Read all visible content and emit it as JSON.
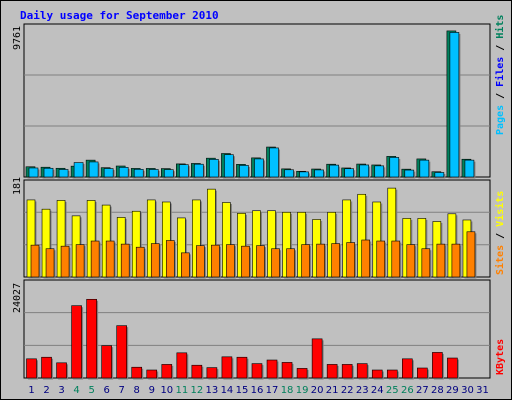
{
  "chart_data": {
    "type": "bar",
    "title": "Daily usage for September 2010",
    "categories": [
      "1",
      "2",
      "3",
      "4",
      "5",
      "6",
      "7",
      "8",
      "9",
      "10",
      "11",
      "12",
      "13",
      "14",
      "15",
      "16",
      "17",
      "18",
      "19",
      "20",
      "21",
      "22",
      "23",
      "24",
      "25",
      "26",
      "27",
      "28",
      "29",
      "30",
      "31"
    ],
    "weekend_days": [
      "4",
      "5",
      "11",
      "12",
      "18",
      "19",
      "25",
      "26"
    ],
    "hits_panel": {
      "max_label": "9761",
      "ylim": [
        0,
        9761
      ],
      "legend": [
        "Pages",
        "Files",
        "Hits"
      ],
      "series": [
        {
          "name": "Hits",
          "values": [
            680,
            650,
            580,
            720,
            1120,
            620,
            730,
            570,
            570,
            560,
            870,
            900,
            1250,
            1560,
            840,
            1270,
            1990,
            540,
            380,
            530,
            850,
            600,
            860,
            800,
            1370,
            520,
            1200,
            350,
            9700,
            1180,
            0
          ]
        },
        {
          "name": "Files",
          "values": [
            600,
            580,
            500,
            960,
            1000,
            560,
            640,
            510,
            500,
            490,
            820,
            850,
            1170,
            1480,
            770,
            1200,
            1930,
            480,
            340,
            470,
            790,
            550,
            800,
            740,
            1300,
            460,
            1120,
            300,
            9600,
            1120,
            0
          ]
        },
        {
          "name": "Pages",
          "values": [
            0,
            0,
            0,
            0,
            0,
            0,
            0,
            0,
            0,
            0,
            0,
            0,
            0,
            0,
            0,
            0,
            0,
            0,
            0,
            0,
            0,
            0,
            0,
            0,
            0,
            0,
            0,
            0,
            0,
            0,
            0
          ]
        }
      ]
    },
    "visits_panel": {
      "max_label": "181",
      "ylim": [
        0,
        181
      ],
      "legend": [
        "Sites",
        "Visits"
      ],
      "series": [
        {
          "name": "Visits",
          "values": [
            150,
            132,
            149,
            119,
            149,
            140,
            116,
            128,
            150,
            146,
            115,
            150,
            171,
            145,
            124,
            129,
            129,
            126,
            126,
            112,
            126,
            150,
            161,
            146,
            173,
            114,
            114,
            108,
            123,
            111,
            0
          ]
        },
        {
          "name": "Sites",
          "values": [
            62,
            55,
            60,
            63,
            70,
            70,
            64,
            58,
            65,
            71,
            47,
            61,
            62,
            63,
            60,
            61,
            55,
            55,
            63,
            64,
            65,
            67,
            72,
            70,
            70,
            63,
            55,
            64,
            64,
            88,
            0
          ]
        }
      ]
    },
    "kbytes_panel": {
      "max_label": "24027",
      "ylim": [
        0,
        24027
      ],
      "legend": [
        "KBytes"
      ],
      "series": [
        {
          "name": "KBytes",
          "values": [
            4800,
            5200,
            3800,
            18100,
            19700,
            8100,
            13100,
            2700,
            2000,
            3400,
            6300,
            3200,
            2600,
            5300,
            5200,
            3600,
            4500,
            3900,
            2400,
            9800,
            3400,
            3400,
            3600,
            2000,
            2000,
            4800,
            2500,
            6400,
            5000,
            0,
            0
          ]
        }
      ]
    },
    "colors": {
      "background": "#c0c0c0",
      "border": "#000000",
      "title": "#0000ff",
      "hits": "#00805c",
      "files": "#0000ff",
      "pages": "#00c0ff",
      "visits": "#ffff00",
      "sites": "#ff8000",
      "kbytes": "#ff0000",
      "weekday_label": "#000080",
      "weekend_label": "#00805c",
      "grid": "#808080"
    }
  }
}
